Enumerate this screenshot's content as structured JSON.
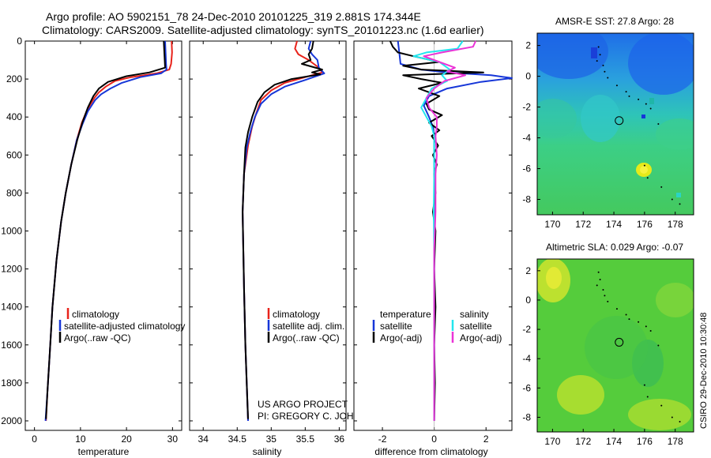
{
  "header": {
    "line1": "Argo profile: AO 5902151_78 24-Dec-2010 20101225_319 2.881S 174.344E",
    "line2": "Climatology: CARS2009. Satellite-adjusted climatology: synTS_20101223.nc (1.6d earlier)"
  },
  "credits": {
    "project": "US ARGO PROJECT",
    "pi": "PI: GREGORY C. JOHNSON",
    "stamp": "CSIRO 29-Dec-2010 10:30:48"
  },
  "colors": {
    "climatology": "#e8231b",
    "satellite": "#1636d8",
    "argo": "#000000",
    "sat_diff": "#22e6ee",
    "argo_diff": "#ea34d6"
  },
  "chart_data": [
    {
      "type": "line",
      "id": "temperature",
      "xlabel": "temperature",
      "ylabel": "",
      "xlim": [
        -2,
        32
      ],
      "ylim": [
        2050,
        0
      ],
      "xticks": [
        0,
        10,
        20,
        30
      ],
      "yticks": [
        0,
        200,
        400,
        600,
        800,
        1000,
        1200,
        1400,
        1600,
        1800,
        2000
      ],
      "legend": [
        "climatology",
        "satellite-adjusted climatology",
        "Argo(..raw -QC)"
      ],
      "series": [
        {
          "name": "climatology",
          "color": "#e8231b",
          "points": [
            [
              29.8,
              0
            ],
            [
              29.9,
              60
            ],
            [
              29.7,
              120
            ],
            [
              29.3,
              150
            ],
            [
              26.5,
              170
            ],
            [
              21,
              190
            ],
            [
              17.5,
              210
            ],
            [
              15.5,
              240
            ],
            [
              14,
              270
            ],
            [
              13,
              300
            ],
            [
              11.5,
              360
            ],
            [
              10.3,
              430
            ],
            [
              9.2,
              520
            ],
            [
              8,
              650
            ],
            [
              6.8,
              800
            ],
            [
              5.8,
              950
            ],
            [
              4.8,
              1150
            ],
            [
              3.9,
              1400
            ],
            [
              3.3,
              1650
            ],
            [
              2.8,
              1850
            ],
            [
              2.5,
              2000
            ]
          ]
        },
        {
          "name": "satellite-adjusted climatology",
          "color": "#1636d8",
          "points": [
            [
              28.4,
              0
            ],
            [
              28.5,
              60
            ],
            [
              28.6,
              120
            ],
            [
              28.7,
              150
            ],
            [
              27.5,
              170
            ],
            [
              23,
              190
            ],
            [
              19,
              220
            ],
            [
              16.5,
              250
            ],
            [
              14.5,
              280
            ],
            [
              13.2,
              310
            ],
            [
              11.6,
              370
            ],
            [
              10.4,
              440
            ],
            [
              9.2,
              520
            ],
            [
              8,
              650
            ],
            [
              6.8,
              800
            ],
            [
              5.8,
              950
            ],
            [
              4.8,
              1150
            ],
            [
              3.9,
              1400
            ],
            [
              3.3,
              1650
            ],
            [
              2.8,
              1850
            ],
            [
              2.4,
              2000
            ]
          ]
        },
        {
          "name": "Argo(..raw -QC)",
          "color": "#000000",
          "points": [
            [
              28.1,
              0
            ],
            [
              28.2,
              50
            ],
            [
              28.3,
              100
            ],
            [
              28.4,
              140
            ],
            [
              25,
              165
            ],
            [
              20,
              185
            ],
            [
              16,
              215
            ],
            [
              14,
              250
            ],
            [
              12.8,
              290
            ],
            [
              11.6,
              350
            ],
            [
              10.4,
              430
            ],
            [
              9.3,
              520
            ],
            [
              8,
              650
            ],
            [
              6.8,
              800
            ],
            [
              5.8,
              950
            ],
            [
              4.8,
              1150
            ],
            [
              3.9,
              1400
            ],
            [
              3.3,
              1650
            ],
            [
              2.8,
              1850
            ],
            [
              2.5,
              1990
            ]
          ]
        }
      ]
    },
    {
      "type": "line",
      "id": "salinity",
      "xlabel": "salinity",
      "xlim": [
        33.8,
        36.1
      ],
      "ylim": [
        2050,
        0
      ],
      "xticks": [
        34,
        34.5,
        35,
        35.5,
        36
      ],
      "legend": [
        "climatology",
        "satellite adj. clim.",
        "Argo(..raw -QC)"
      ],
      "series": [
        {
          "name": "climatology",
          "color": "#e8231b",
          "points": [
            [
              35.38,
              0
            ],
            [
              35.35,
              40
            ],
            [
              35.4,
              70
            ],
            [
              35.55,
              100
            ],
            [
              35.7,
              140
            ],
            [
              35.75,
              165
            ],
            [
              35.5,
              190
            ],
            [
              35.2,
              220
            ],
            [
              35,
              260
            ],
            [
              34.85,
              310
            ],
            [
              34.78,
              380
            ],
            [
              34.72,
              450
            ],
            [
              34.66,
              550
            ],
            [
              34.6,
              700
            ],
            [
              34.58,
              900
            ],
            [
              34.59,
              1100
            ],
            [
              34.6,
              1300
            ],
            [
              34.62,
              1600
            ],
            [
              34.64,
              1800
            ],
            [
              34.66,
              2000
            ]
          ]
        },
        {
          "name": "satellite adj. clim.",
          "color": "#1636d8",
          "points": [
            [
              35.58,
              0
            ],
            [
              35.55,
              40
            ],
            [
              35.6,
              70
            ],
            [
              35.68,
              100
            ],
            [
              35.7,
              140
            ],
            [
              35.78,
              170
            ],
            [
              35.5,
              205
            ],
            [
              35.2,
              240
            ],
            [
              35,
              280
            ],
            [
              34.85,
              330
            ],
            [
              34.76,
              400
            ],
            [
              34.7,
              470
            ],
            [
              34.64,
              560
            ],
            [
              34.6,
              700
            ],
            [
              34.58,
              900
            ],
            [
              34.59,
              1100
            ],
            [
              34.6,
              1300
            ],
            [
              34.62,
              1600
            ],
            [
              34.64,
              1800
            ],
            [
              34.66,
              2000
            ]
          ]
        },
        {
          "name": "Argo(..raw -QC)",
          "color": "#000000",
          "points": [
            [
              35.62,
              0
            ],
            [
              35.6,
              40
            ],
            [
              35.55,
              70
            ],
            [
              35.58,
              100
            ],
            [
              35.45,
              120
            ],
            [
              35.75,
              150
            ],
            [
              35.6,
              165
            ],
            [
              35.72,
              175
            ],
            [
              35.3,
              200
            ],
            [
              35.05,
              230
            ],
            [
              34.9,
              270
            ],
            [
              34.8,
              320
            ],
            [
              34.72,
              400
            ],
            [
              34.66,
              480
            ],
            [
              34.62,
              560
            ],
            [
              34.6,
              700
            ],
            [
              34.58,
              900
            ],
            [
              34.59,
              1100
            ],
            [
              34.6,
              1300
            ],
            [
              34.62,
              1600
            ],
            [
              34.64,
              1800
            ],
            [
              34.66,
              1990
            ]
          ]
        }
      ]
    },
    {
      "type": "line",
      "id": "difference",
      "xlabel": "difference from climatology",
      "xlim": [
        -3.1,
        3.0
      ],
      "ylim": [
        2050,
        0
      ],
      "xticks": [
        -2,
        0,
        2
      ],
      "legend_left_title": "temperature",
      "legend_right_title": "salinity",
      "legend": [
        "satellite",
        "Argo(-adj)",
        "satellite",
        "Argo(-adj)"
      ],
      "series": [
        {
          "name": "temperature satellite",
          "color": "#1636d8",
          "points": [
            [
              -1.4,
              0
            ],
            [
              -1.35,
              60
            ],
            [
              -1.3,
              120
            ],
            [
              -0.5,
              150
            ],
            [
              0.5,
              165
            ],
            [
              2.2,
              180
            ],
            [
              3.0,
              195
            ],
            [
              1.8,
              215
            ],
            [
              0.5,
              250
            ],
            [
              -0.2,
              290
            ],
            [
              -0.4,
              340
            ],
            [
              -0.2,
              400
            ],
            [
              -0.05,
              450
            ],
            [
              0,
              500
            ],
            [
              0,
              700
            ],
            [
              0,
              1000
            ],
            [
              0,
              1400
            ],
            [
              0,
              2000
            ]
          ]
        },
        {
          "name": "temperature Argo(-adj)",
          "color": "#000000",
          "points": [
            [
              -1.7,
              0
            ],
            [
              -1.6,
              30
            ],
            [
              -1.4,
              60
            ],
            [
              -0.8,
              80
            ],
            [
              0.2,
              110
            ],
            [
              -1.2,
              130
            ],
            [
              -0.5,
              150
            ],
            [
              1.9,
              165
            ],
            [
              -1.2,
              180
            ],
            [
              -0.5,
              200
            ],
            [
              0.3,
              220
            ],
            [
              -0.6,
              250
            ],
            [
              0.2,
              290
            ],
            [
              -0.3,
              330
            ],
            [
              -0.2,
              360
            ],
            [
              0.3,
              390
            ],
            [
              -0.2,
              430
            ],
            [
              0.2,
              470
            ],
            [
              -0.1,
              500
            ],
            [
              0.15,
              550
            ],
            [
              -0.05,
              600
            ],
            [
              0.1,
              650
            ],
            [
              0,
              700
            ],
            [
              0.05,
              800
            ],
            [
              -0.05,
              900
            ],
            [
              0.05,
              1000
            ],
            [
              0,
              1200
            ],
            [
              0.05,
              1400
            ],
            [
              0,
              1600
            ],
            [
              0.03,
              1800
            ],
            [
              0,
              2000
            ]
          ]
        },
        {
          "name": "salinity satellite",
          "color": "#22e6ee",
          "points": [
            [
              1.1,
              0
            ],
            [
              0.9,
              40
            ],
            [
              -0.3,
              60
            ],
            [
              -0.8,
              80
            ],
            [
              0.2,
              110
            ],
            [
              0.6,
              150
            ],
            [
              0.3,
              180
            ],
            [
              0.5,
              210
            ],
            [
              -0.1,
              250
            ],
            [
              -0.3,
              300
            ],
            [
              -0.5,
              350
            ],
            [
              -0.3,
              400
            ],
            [
              -0.1,
              450
            ],
            [
              0,
              500
            ],
            [
              0,
              700
            ],
            [
              -0.02,
              900
            ],
            [
              0,
              1100
            ],
            [
              0,
              1400
            ],
            [
              0,
              2000
            ]
          ]
        },
        {
          "name": "salinity Argo(-adj)",
          "color": "#ea34d6",
          "points": [
            [
              1.6,
              0
            ],
            [
              1.5,
              30
            ],
            [
              0.3,
              60
            ],
            [
              -0.4,
              80
            ],
            [
              0.2,
              110
            ],
            [
              0.8,
              140
            ],
            [
              0.5,
              160
            ],
            [
              1.2,
              180
            ],
            [
              0.4,
              210
            ],
            [
              0,
              250
            ],
            [
              -0.3,
              300
            ],
            [
              -0.2,
              350
            ],
            [
              0.1,
              400
            ],
            [
              0.1,
              450
            ],
            [
              0.05,
              500
            ],
            [
              0.1,
              600
            ],
            [
              0.05,
              700
            ],
            [
              0.05,
              900
            ],
            [
              0,
              1100
            ],
            [
              0,
              1400
            ],
            [
              0,
              2000
            ]
          ]
        }
      ]
    },
    {
      "type": "heatmap",
      "id": "sst-map",
      "title": "AMSR-E SST: 27.8 Argo: 28",
      "xlim": [
        169,
        179.2
      ],
      "ylim": [
        -9,
        2.8
      ],
      "xticks": [
        170,
        172,
        174,
        176,
        178
      ],
      "yticks": [
        2,
        0,
        -2,
        -4,
        -6,
        -8
      ],
      "argo_position": [
        174.344,
        -2.881
      ]
    },
    {
      "type": "heatmap",
      "id": "sla-map",
      "title": "Altimetric SLA: 0.029 Argo: -0.07",
      "xlim": [
        169,
        179.2
      ],
      "ylim": [
        -9,
        2.8
      ],
      "xticks": [
        170,
        172,
        174,
        176,
        178
      ],
      "yticks": [
        2,
        0,
        -2,
        -4,
        -6,
        -8
      ],
      "argo_position": [
        174.344,
        -2.881
      ]
    }
  ]
}
